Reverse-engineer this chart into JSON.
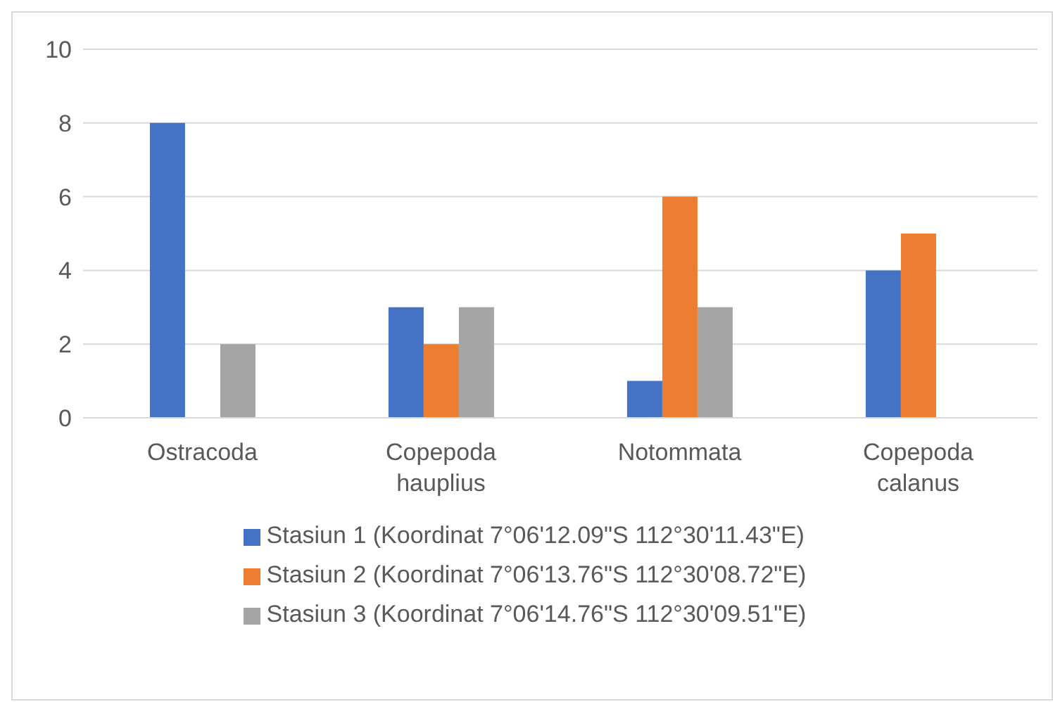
{
  "chart_data": {
    "type": "bar",
    "categories": [
      "Ostracoda",
      "Copepoda hauplius",
      "Notommata",
      "Copepoda calanus"
    ],
    "series": [
      {
        "name": "Stasiun 1 (Koordinat 7°06'12.09\"S 112°30'11.43\"E)",
        "color": "#4472c4",
        "values": [
          8,
          3,
          1,
          4
        ]
      },
      {
        "name": "Stasiun 2 (Koordinat 7°06'13.76\"S 112°30'08.72\"E)",
        "color": "#ed7d31",
        "values": [
          0,
          2,
          6,
          5
        ]
      },
      {
        "name": "Stasiun 3 (Koordinat 7°06'14.76\"S 112°30'09.51\"E)",
        "color": "#a5a5a5",
        "values": [
          2,
          3,
          3,
          0
        ]
      }
    ],
    "ylim": [
      0,
      10
    ],
    "yticks": [
      0,
      2,
      4,
      6,
      8,
      10
    ],
    "grid": "y",
    "legend": "bottom"
  }
}
